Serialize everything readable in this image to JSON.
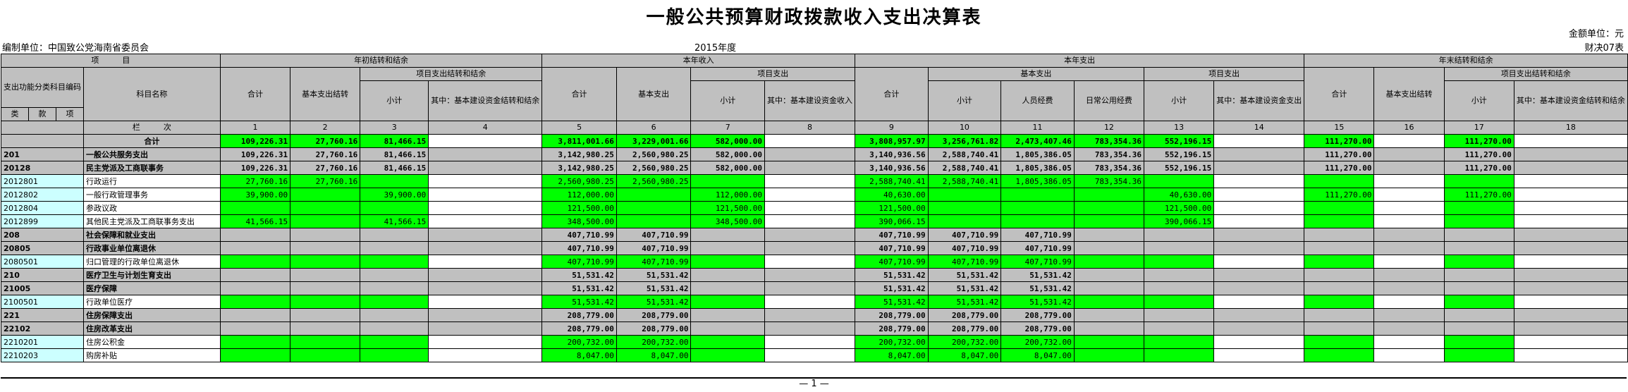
{
  "title": "一般公共预算财政拨款收入支出决算表",
  "unit_label": "金额单位：元",
  "form_code": "财决07表",
  "org_label": "编制单位：中国致公党海南省委员会",
  "year_label": "2015年度",
  "page_marker": "— 1 —",
  "headers": {
    "project": "项　　　目",
    "func_code": "支出功能分类科目编码",
    "item_name": "科目名称",
    "lei": "类",
    "kuan": "款",
    "xiang": "项",
    "lanci": "栏　　　次",
    "start_carry": "年初结转和结余",
    "current_income": "本年收入",
    "current_expense": "本年支出",
    "end_carry": "年末结转和结余",
    "total": "合计",
    "basic_carry": "基本支出结转",
    "project_carry": "项目支出结转和结余",
    "project_expense": "项目支出",
    "basic_expense": "基本支出",
    "subtotal": "小计",
    "capital_carry": "其中：基本建设资金结转和结余",
    "capital_income": "其中：基本建设资金收入",
    "personnel": "人员经费",
    "public_use": "日常公用经费",
    "capital_expense": "其中：基本建设资金支出",
    "col_numbers": [
      "1",
      "2",
      "3",
      "4",
      "5",
      "6",
      "7",
      "8",
      "9",
      "10",
      "11",
      "12",
      "13",
      "14",
      "15",
      "16",
      "17",
      "18"
    ]
  },
  "rows": [
    {
      "code": "",
      "name": "合计",
      "vals": [
        "109,226.31",
        "27,760.16",
        "81,466.15",
        "",
        "3,811,001.66",
        "3,229,001.66",
        "582,000.00",
        "",
        "3,808,957.97",
        "3,256,761.82",
        "2,473,407.46",
        "783,354.36",
        "552,196.15",
        "",
        "111,270.00",
        "",
        "111,270.00",
        ""
      ]
    },
    {
      "code": "201",
      "name": "一般公共服务支出",
      "vals": [
        "109,226.31",
        "27,760.16",
        "81,466.15",
        "",
        "3,142,980.25",
        "2,560,980.25",
        "582,000.00",
        "",
        "3,140,936.56",
        "2,588,740.41",
        "1,805,386.05",
        "783,354.36",
        "552,196.15",
        "",
        "111,270.00",
        "",
        "111,270.00",
        ""
      ]
    },
    {
      "code": "20128",
      "name": "民主党派及工商联事务",
      "vals": [
        "109,226.31",
        "27,760.16",
        "81,466.15",
        "",
        "3,142,980.25",
        "2,560,980.25",
        "582,000.00",
        "",
        "3,140,936.56",
        "2,588,740.41",
        "1,805,386.05",
        "783,354.36",
        "552,196.15",
        "",
        "111,270.00",
        "",
        "111,270.00",
        ""
      ]
    },
    {
      "code": "2012801",
      "name": "行政运行",
      "vals": [
        "27,760.16",
        "27,760.16",
        "",
        "",
        "2,560,980.25",
        "2,560,980.25",
        "",
        "",
        "2,588,740.41",
        "2,588,740.41",
        "1,805,386.05",
        "783,354.36",
        "",
        "",
        "",
        "",
        "",
        ""
      ]
    },
    {
      "code": "2012802",
      "name": "一般行政管理事务",
      "vals": [
        "39,900.00",
        "",
        "39,900.00",
        "",
        "112,000.00",
        "",
        "112,000.00",
        "",
        "40,630.00",
        "",
        "",
        "",
        "40,630.00",
        "",
        "111,270.00",
        "",
        "111,270.00",
        ""
      ]
    },
    {
      "code": "2012804",
      "name": "参政议政",
      "vals": [
        "",
        "",
        "",
        "",
        "121,500.00",
        "",
        "121,500.00",
        "",
        "121,500.00",
        "",
        "",
        "",
        "121,500.00",
        "",
        "",
        "",
        "",
        ""
      ]
    },
    {
      "code": "2012899",
      "name": "其他民主党派及工商联事务支出",
      "vals": [
        "41,566.15",
        "",
        "41,566.15",
        "",
        "348,500.00",
        "",
        "348,500.00",
        "",
        "390,066.15",
        "",
        "",
        "",
        "390,066.15",
        "",
        "",
        "",
        "",
        ""
      ]
    },
    {
      "code": "208",
      "name": "社会保障和就业支出",
      "vals": [
        "",
        "",
        "",
        "",
        "407,710.99",
        "407,710.99",
        "",
        "",
        "407,710.99",
        "407,710.99",
        "407,710.99",
        "",
        "",
        "",
        "",
        "",
        "",
        ""
      ]
    },
    {
      "code": "20805",
      "name": "行政事业单位离退休",
      "vals": [
        "",
        "",
        "",
        "",
        "407,710.99",
        "407,710.99",
        "",
        "",
        "407,710.99",
        "407,710.99",
        "407,710.99",
        "",
        "",
        "",
        "",
        "",
        "",
        ""
      ]
    },
    {
      "code": "2080501",
      "name": "归口管理的行政单位离退休",
      "vals": [
        "",
        "",
        "",
        "",
        "407,710.99",
        "407,710.99",
        "",
        "",
        "407,710.99",
        "407,710.99",
        "407,710.99",
        "",
        "",
        "",
        "",
        "",
        "",
        ""
      ]
    },
    {
      "code": "210",
      "name": "医疗卫生与计划生育支出",
      "vals": [
        "",
        "",
        "",
        "",
        "51,531.42",
        "51,531.42",
        "",
        "",
        "51,531.42",
        "51,531.42",
        "51,531.42",
        "",
        "",
        "",
        "",
        "",
        "",
        ""
      ]
    },
    {
      "code": "21005",
      "name": "医疗保障",
      "vals": [
        "",
        "",
        "",
        "",
        "51,531.42",
        "51,531.42",
        "",
        "",
        "51,531.42",
        "51,531.42",
        "51,531.42",
        "",
        "",
        "",
        "",
        "",
        "",
        ""
      ]
    },
    {
      "code": "2100501",
      "name": "行政单位医疗",
      "vals": [
        "",
        "",
        "",
        "",
        "51,531.42",
        "51,531.42",
        "",
        "",
        "51,531.42",
        "51,531.42",
        "51,531.42",
        "",
        "",
        "",
        "",
        "",
        "",
        ""
      ]
    },
    {
      "code": "221",
      "name": "住房保障支出",
      "vals": [
        "",
        "",
        "",
        "",
        "208,779.00",
        "208,779.00",
        "",
        "",
        "208,779.00",
        "208,779.00",
        "208,779.00",
        "",
        "",
        "",
        "",
        "",
        "",
        ""
      ]
    },
    {
      "code": "22102",
      "name": "住房改革支出",
      "vals": [
        "",
        "",
        "",
        "",
        "208,779.00",
        "208,779.00",
        "",
        "",
        "208,779.00",
        "208,779.00",
        "208,779.00",
        "",
        "",
        "",
        "",
        "",
        "",
        ""
      ]
    },
    {
      "code": "2210201",
      "name": "住房公积金",
      "vals": [
        "",
        "",
        "",
        "",
        "200,732.00",
        "200,732.00",
        "",
        "",
        "200,732.00",
        "200,732.00",
        "200,732.00",
        "",
        "",
        "",
        "",
        "",
        "",
        ""
      ]
    },
    {
      "code": "2210203",
      "name": "购房补贴",
      "vals": [
        "",
        "",
        "",
        "",
        "8,047.00",
        "8,047.00",
        "",
        "",
        "8,047.00",
        "8,047.00",
        "8,047.00",
        "",
        "",
        "",
        "",
        "",
        "",
        ""
      ]
    }
  ],
  "colors": {
    "header_gray": "#c0c0c0",
    "value_green": "#00ff00",
    "code_cyan": "#ccffff"
  }
}
